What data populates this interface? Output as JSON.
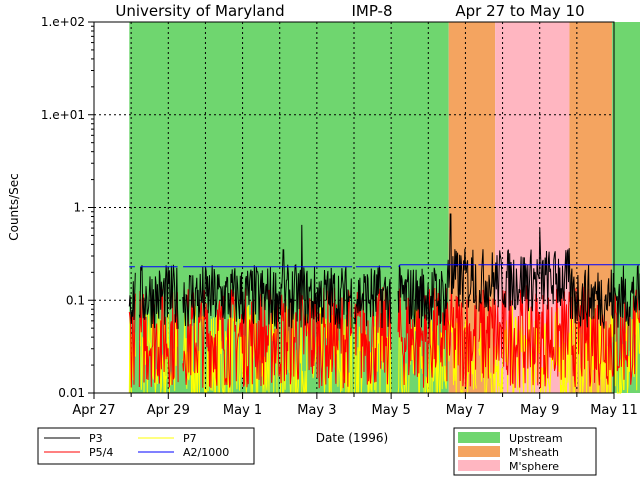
{
  "chart_data": {
    "type": "line",
    "title": {
      "institution": "University of Maryland",
      "spacecraft": "IMP-8",
      "date_range": "Apr 27 to May 10"
    },
    "xlabel": "Date (1996)",
    "ylabel": "Counts/Sec",
    "yscale": "log",
    "xlim": [
      0,
      14
    ],
    "ylim": [
      0.01,
      100
    ],
    "x_ticks": [
      {
        "v": 0,
        "label": "Apr 27"
      },
      {
        "v": 2,
        "label": "Apr 29"
      },
      {
        "v": 4,
        "label": "May 1"
      },
      {
        "v": 6,
        "label": "May 3"
      },
      {
        "v": 8,
        "label": "May 5"
      },
      {
        "v": 10,
        "label": "May 7"
      },
      {
        "v": 12,
        "label": "May 9"
      },
      {
        "v": 14,
        "label": "May 11"
      }
    ],
    "x_minor_ticks": [
      1,
      3,
      5,
      7,
      9,
      11,
      13
    ],
    "y_ticks": [
      {
        "v": 0.01,
        "label": "0.01"
      },
      {
        "v": 0.1,
        "label": "0.1"
      },
      {
        "v": 1,
        "label": "1."
      },
      {
        "v": 10,
        "label": "1.e+01"
      },
      {
        "v": 100,
        "label": "1.e+02"
      }
    ],
    "grid": "dotted",
    "regions": [
      {
        "name": "Upstream",
        "start": 0.95,
        "end": 9.55,
        "color": "#6fd66f"
      },
      {
        "name": "M'sheath",
        "start": 9.55,
        "end": 10.8,
        "color": "#f4a460"
      },
      {
        "name": "M'sphere",
        "start": 10.8,
        "end": 12.8,
        "color": "#ffb6c1"
      },
      {
        "name": "M'sheath",
        "start": 12.8,
        "end": 13.95,
        "color": "#f4a460"
      },
      {
        "name": "Upstream",
        "start": 13.95,
        "end": 14.8,
        "color": "#6fd66f"
      }
    ],
    "data_gaps": [
      [
        1.12,
        1.22
      ],
      [
        2.28,
        2.38
      ],
      [
        6.95,
        7.0
      ],
      [
        8.0,
        8.18
      ],
      [
        10.3,
        10.35
      ]
    ],
    "series": [
      {
        "name": "P3",
        "color": "#000000",
        "level": 0.11,
        "spread": 0.35,
        "start": 0.95,
        "end": 14.8,
        "spikes": [
          {
            "x": 5.1,
            "v": 0.35
          },
          {
            "x": 5.6,
            "v": 0.65
          },
          {
            "x": 9.6,
            "v": 0.85
          },
          {
            "x": 10.2,
            "v": 0.35
          },
          {
            "x": 12.0,
            "v": 0.6
          },
          {
            "x": 12.5,
            "v": 0.28
          }
        ]
      },
      {
        "name": "P5/4",
        "color": "#ff0000",
        "level": 0.04,
        "spread": 0.55,
        "start": 0.95,
        "end": 14.8,
        "spikes": []
      },
      {
        "name": "P7",
        "color": "#ffff00",
        "level": 0.022,
        "spread": 0.6,
        "start": 0.95,
        "end": 14.8,
        "spikes": []
      },
      {
        "name": "A2/1000",
        "color": "#0000ff",
        "level": 0.23,
        "spread": 0.03,
        "start": 0.95,
        "end": 14.8,
        "spikes": []
      }
    ],
    "legend_lines": [
      {
        "name": "P3",
        "color": "#000000"
      },
      {
        "name": "P7",
        "color": "#ffff00"
      },
      {
        "name": "P5/4",
        "color": "#ff0000"
      },
      {
        "name": "A2/1000",
        "color": "#0000ff"
      }
    ],
    "legend_regions": [
      {
        "name": "Upstream",
        "color": "#6fd66f"
      },
      {
        "name": "M'sheath",
        "color": "#f4a460"
      },
      {
        "name": "M'sphere",
        "color": "#ffb6c1"
      }
    ]
  }
}
